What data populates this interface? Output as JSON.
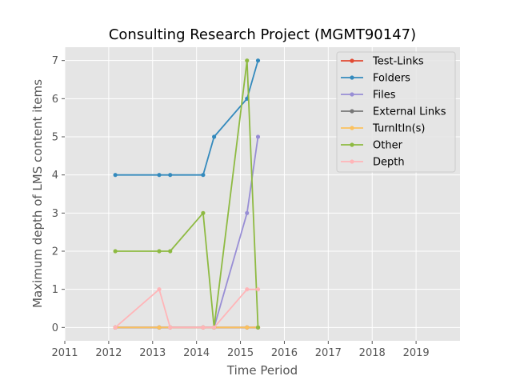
{
  "chart_data": {
    "type": "line",
    "title": "Consulting Research Project (MGMT90147)",
    "xlabel": "Time Period",
    "ylabel": "Maximum depth of LMS content items",
    "xlim": [
      2011,
      2020
    ],
    "ylim": [
      -0.35,
      7.35
    ],
    "xticks": [
      "2011",
      "2012",
      "2013",
      "2014",
      "2015",
      "2016",
      "2017",
      "2018",
      "2019"
    ],
    "yticks": [
      "0",
      "1",
      "2",
      "3",
      "4",
      "5",
      "6",
      "7"
    ],
    "grid": true,
    "legend_position": "top-right",
    "series": [
      {
        "name": "Test-Links",
        "color": "#e24a33",
        "x": [
          2012.15,
          2013.15,
          2013.4,
          2014.15,
          2014.4,
          2015.15,
          2015.4
        ],
        "y": [
          0,
          0,
          0,
          0,
          0,
          0,
          0
        ]
      },
      {
        "name": "Folders",
        "color": "#348abd",
        "x": [
          2012.15,
          2013.15,
          2013.4,
          2014.15,
          2014.4,
          2015.15,
          2015.4
        ],
        "y": [
          4,
          4,
          4,
          4,
          5,
          6,
          7
        ]
      },
      {
        "name": "Files",
        "color": "#988ed5",
        "x": [
          2012.15,
          2013.15,
          2013.4,
          2014.15,
          2014.4,
          2015.15,
          2015.4
        ],
        "y": [
          0,
          0,
          0,
          0,
          0,
          3,
          5
        ]
      },
      {
        "name": "External Links",
        "color": "#777777",
        "x": [
          2012.15,
          2013.15,
          2013.4,
          2014.15,
          2014.4,
          2015.15,
          2015.4
        ],
        "y": [
          0,
          0,
          0,
          0,
          0,
          0,
          0
        ]
      },
      {
        "name": "TurnItIn(s)",
        "color": "#fbc15e",
        "x": [
          2012.15,
          2013.15,
          2013.4,
          2014.15,
          2014.4,
          2015.15,
          2015.4
        ],
        "y": [
          0,
          0,
          0,
          0,
          0,
          0,
          0
        ]
      },
      {
        "name": "Other",
        "color": "#8eba42",
        "x": [
          2012.15,
          2013.15,
          2013.4,
          2014.15,
          2014.4,
          2015.15,
          2015.4
        ],
        "y": [
          2,
          2,
          2,
          3,
          0,
          7,
          0
        ]
      },
      {
        "name": "Depth",
        "color": "#ffb5b8",
        "x": [
          2012.15,
          2013.15,
          2013.4,
          2014.15,
          2014.4,
          2015.15,
          2015.4
        ],
        "y": [
          0,
          1,
          0,
          0,
          0,
          1,
          1
        ]
      }
    ]
  }
}
